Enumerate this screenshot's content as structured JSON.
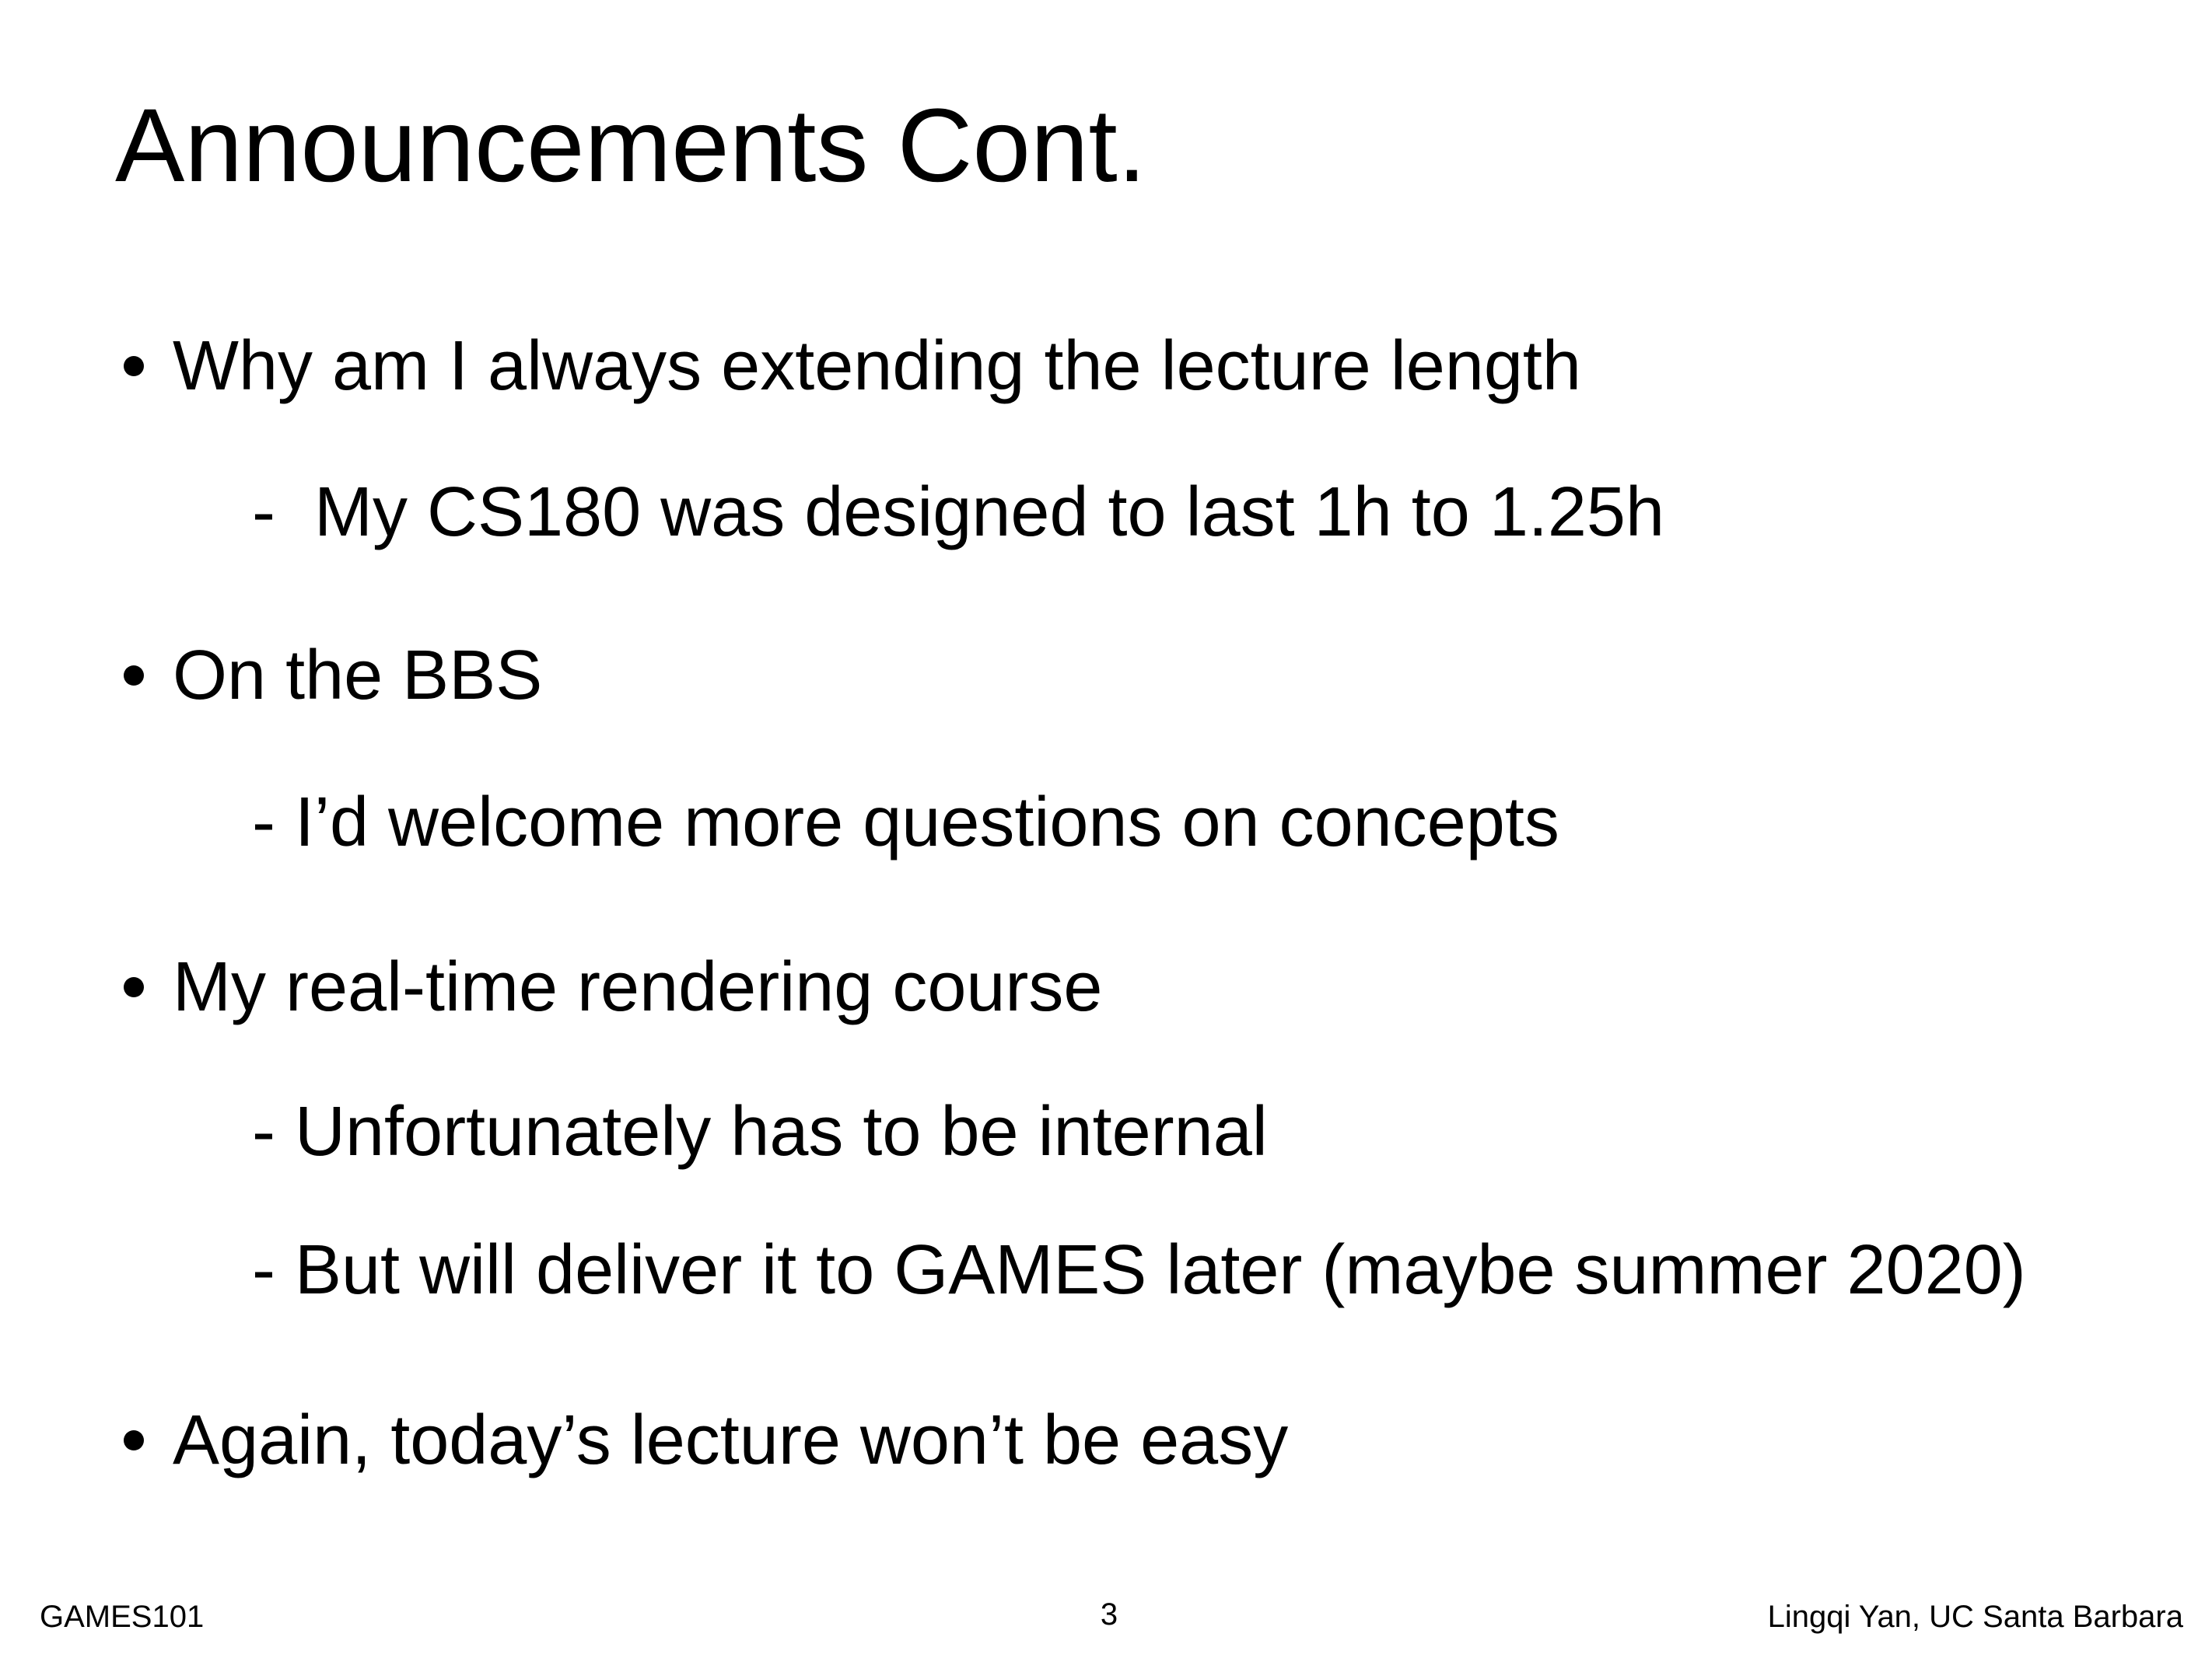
{
  "slide": {
    "title": "Announcements Cont.",
    "bullets": [
      {
        "text": "Why am I always extending the lecture length",
        "subitems": [
          "-  My CS180 was designed to last 1h to 1.25h"
        ]
      },
      {
        "text": "On the BBS",
        "subitems": [
          "- I’d welcome more questions on concepts"
        ]
      },
      {
        "text": "My real-time rendering course",
        "subitems": [
          "- Unfortunately has to be internal",
          "- But will deliver it to GAMES later (maybe summer 2020)"
        ]
      },
      {
        "text": "Again, today’s lecture won’t be easy",
        "subitems": []
      }
    ],
    "footer": {
      "left": "GAMES101",
      "page": 3,
      "right": "Lingqi Yan, UC Santa Barbara"
    }
  }
}
